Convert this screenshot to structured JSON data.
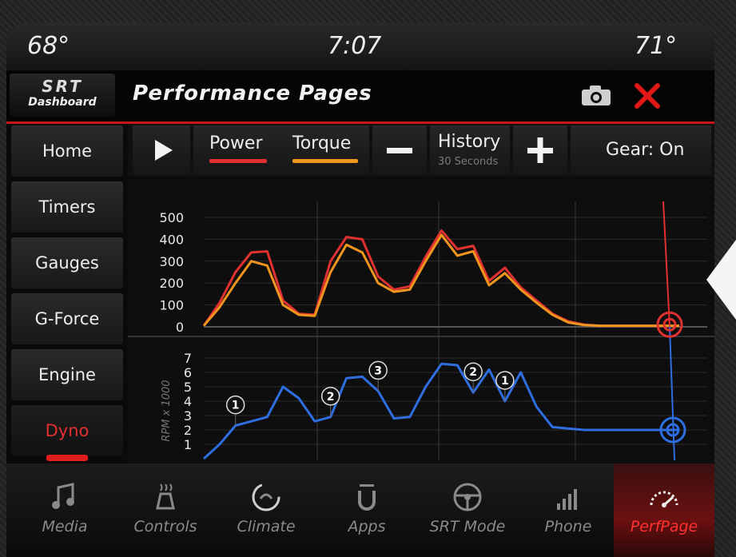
{
  "status": {
    "temp_left": "68°",
    "clock": "7:07",
    "temp_right": "71°"
  },
  "header": {
    "logo_top": "SRT",
    "logo_bottom": "Dashboard",
    "title": "Performance Pages"
  },
  "sidebar": {
    "items": [
      {
        "label": "Home"
      },
      {
        "label": "Timers"
      },
      {
        "label": "Gauges"
      },
      {
        "label": "G-Force"
      },
      {
        "label": "Engine"
      },
      {
        "label": "Dyno",
        "active": true
      }
    ]
  },
  "controls": {
    "power_label": "Power",
    "power_color": "#e03030",
    "torque_label": "Torque",
    "torque_color": "#f0961e",
    "history_label": "History",
    "history_sub": "30 Seconds",
    "gear_label": "Gear: On"
  },
  "chart_data": [
    {
      "type": "line",
      "yticks": [
        "500",
        "400",
        "300",
        "200",
        "100",
        "0"
      ],
      "ylim": [
        0,
        500
      ],
      "x": [
        0,
        1,
        2,
        3,
        4,
        5,
        6,
        7,
        8,
        9,
        10,
        11,
        12,
        13,
        14,
        15,
        16,
        17,
        18,
        19,
        20,
        21,
        22,
        23,
        24,
        25,
        26,
        27,
        28,
        29,
        30
      ],
      "series": [
        {
          "name": "Power",
          "color": "#e03030",
          "values": [
            5,
            110,
            250,
            340,
            345,
            120,
            60,
            55,
            300,
            410,
            400,
            230,
            170,
            185,
            320,
            440,
            355,
            370,
            210,
            270,
            180,
            120,
            60,
            25,
            10,
            5,
            5,
            5,
            5,
            5,
            5
          ]
        },
        {
          "name": "Torque",
          "color": "#f0961e",
          "values": [
            5,
            90,
            200,
            300,
            280,
            100,
            55,
            50,
            250,
            375,
            340,
            200,
            160,
            170,
            300,
            420,
            325,
            345,
            190,
            245,
            170,
            110,
            55,
            20,
            8,
            5,
            5,
            5,
            5,
            5,
            5
          ]
        }
      ]
    },
    {
      "type": "line",
      "ylabel": "RPM x 1000",
      "yticks": [
        "7",
        "6",
        "5",
        "4",
        "3",
        "2",
        "1"
      ],
      "ylim": [
        0,
        7
      ],
      "color": "#2f6ee0",
      "x": [
        0,
        1,
        2,
        3,
        4,
        5,
        6,
        7,
        8,
        9,
        10,
        11,
        12,
        13,
        14,
        15,
        16,
        17,
        18,
        19,
        20,
        21,
        22,
        23,
        24,
        25,
        26,
        27,
        28,
        29,
        30
      ],
      "values": [
        0,
        1,
        2.3,
        2.6,
        2.9,
        5.0,
        4.2,
        2.6,
        2.9,
        5.6,
        5.7,
        4.7,
        2.8,
        2.9,
        5.0,
        6.6,
        6.5,
        4.6,
        6.2,
        4.0,
        6.0,
        3.6,
        2.2,
        2.1,
        2.0,
        2.0,
        2.0,
        2.0,
        2.0,
        2.0,
        2.0
      ],
      "gear_markers": [
        {
          "label": "1",
          "x": 2
        },
        {
          "label": "2",
          "x": 8
        },
        {
          "label": "3",
          "x": 11
        },
        {
          "label": "2",
          "x": 17
        },
        {
          "label": "1",
          "x": 19
        }
      ]
    }
  ],
  "dock": {
    "items": [
      {
        "label": "Media",
        "icon": "music-note-icon"
      },
      {
        "label": "Controls",
        "icon": "seat-heater-icon"
      },
      {
        "label": "Climate",
        "icon": "climate-icon"
      },
      {
        "label": "Apps",
        "icon": "apps-icon"
      },
      {
        "label": "SRT Mode",
        "icon": "steering-wheel-icon"
      },
      {
        "label": "Phone",
        "icon": "signal-bars-icon"
      },
      {
        "label": "PerfPage",
        "icon": "gauge-icon",
        "active": true
      }
    ]
  }
}
